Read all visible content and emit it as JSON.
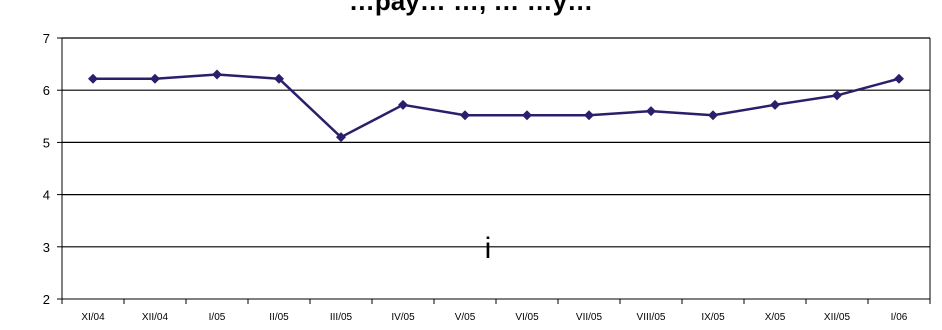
{
  "chart_data": {
    "type": "line",
    "title": "…pay… …, … …y…",
    "xlabel": "",
    "ylabel": "",
    "ylim": [
      2,
      7
    ],
    "yticks": [
      2,
      3,
      4,
      5,
      6,
      7
    ],
    "grid": true,
    "legend": "none",
    "categories": [
      "XI/04",
      "XII/04",
      "I/05",
      "II/05",
      "III/05",
      "IV/05",
      "V/05",
      "VI/05",
      "VII/05",
      "VIII/05",
      "IX/05",
      "X/05",
      "XII/05",
      "I/06"
    ],
    "series": [
      {
        "values": [
          6.22,
          6.22,
          6.3,
          6.22,
          5.1,
          5.72,
          5.52,
          5.52,
          5.52,
          5.6,
          5.52,
          5.72,
          5.9,
          6.22
        ]
      }
    ],
    "annotation": "i",
    "colors": {
      "line": "#2b1f6b",
      "marker": "#2b1f6b",
      "grid": "#000000"
    }
  }
}
